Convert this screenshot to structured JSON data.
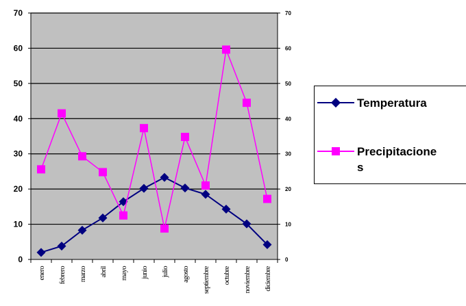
{
  "chart_data": {
    "type": "line",
    "title": "",
    "xlabel": "",
    "ylabel": "",
    "categories": [
      "enero",
      "febrero",
      "marzo",
      "abril",
      "mayo",
      "junio",
      "julio",
      "agosto",
      "septiembre",
      "octubre",
      "noviembre",
      "diciembre"
    ],
    "tick_labels": [
      "enero",
      "febrero",
      "marzo",
      "abril",
      "mayo",
      "junio",
      "julio",
      "agosto",
      "septiembre",
      "octubre",
      "noviembre",
      "diciembre"
    ],
    "series": [
      {
        "name": "Temperatura",
        "values": [
          2,
          3.8,
          8.3,
          11.8,
          16.4,
          20.2,
          23.3,
          20.3,
          18.5,
          14.3,
          10.1,
          4.2
        ],
        "color": "#000080",
        "marker": "diamond"
      },
      {
        "name": "Precipitaciones",
        "values": [
          25.6,
          41.5,
          29.3,
          24.8,
          12.5,
          37.3,
          8.8,
          34.8,
          21,
          59.6,
          44.5,
          17.2
        ],
        "color": "#ff00ff",
        "marker": "square"
      }
    ],
    "ylim": [
      0,
      70
    ],
    "yticks": [
      "0",
      "10",
      "20",
      "30",
      "40",
      "50",
      "60",
      "70"
    ],
    "secondary_ylim": [
      0,
      70
    ],
    "secondary_yticks": [
      "0",
      "10",
      "20",
      "30",
      "40",
      "50",
      "60",
      "70"
    ],
    "grid": true,
    "plot_background": "#c0c0c0",
    "legend_position": "right",
    "legend": [
      {
        "line1": "Temperatura",
        "line2": ""
      },
      {
        "line1": "Precipitacione",
        "line2": "s"
      }
    ]
  }
}
